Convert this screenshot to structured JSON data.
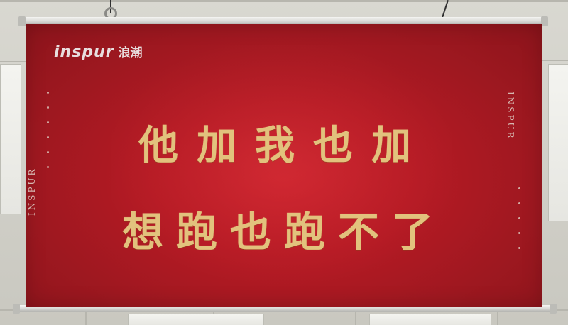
{
  "banner": {
    "brand_latin": "inspur",
    "brand_cjk": "浪潮",
    "side_text_left": "INSPUR",
    "side_text_right": "INSPUR",
    "slogan_line_1": "他加我也加",
    "slogan_line_2": "想跑也跑不了",
    "colors": {
      "banner_red": "#b61a24",
      "slogan_gold": "#e2c27d",
      "logo_white": "#e8dede"
    }
  }
}
